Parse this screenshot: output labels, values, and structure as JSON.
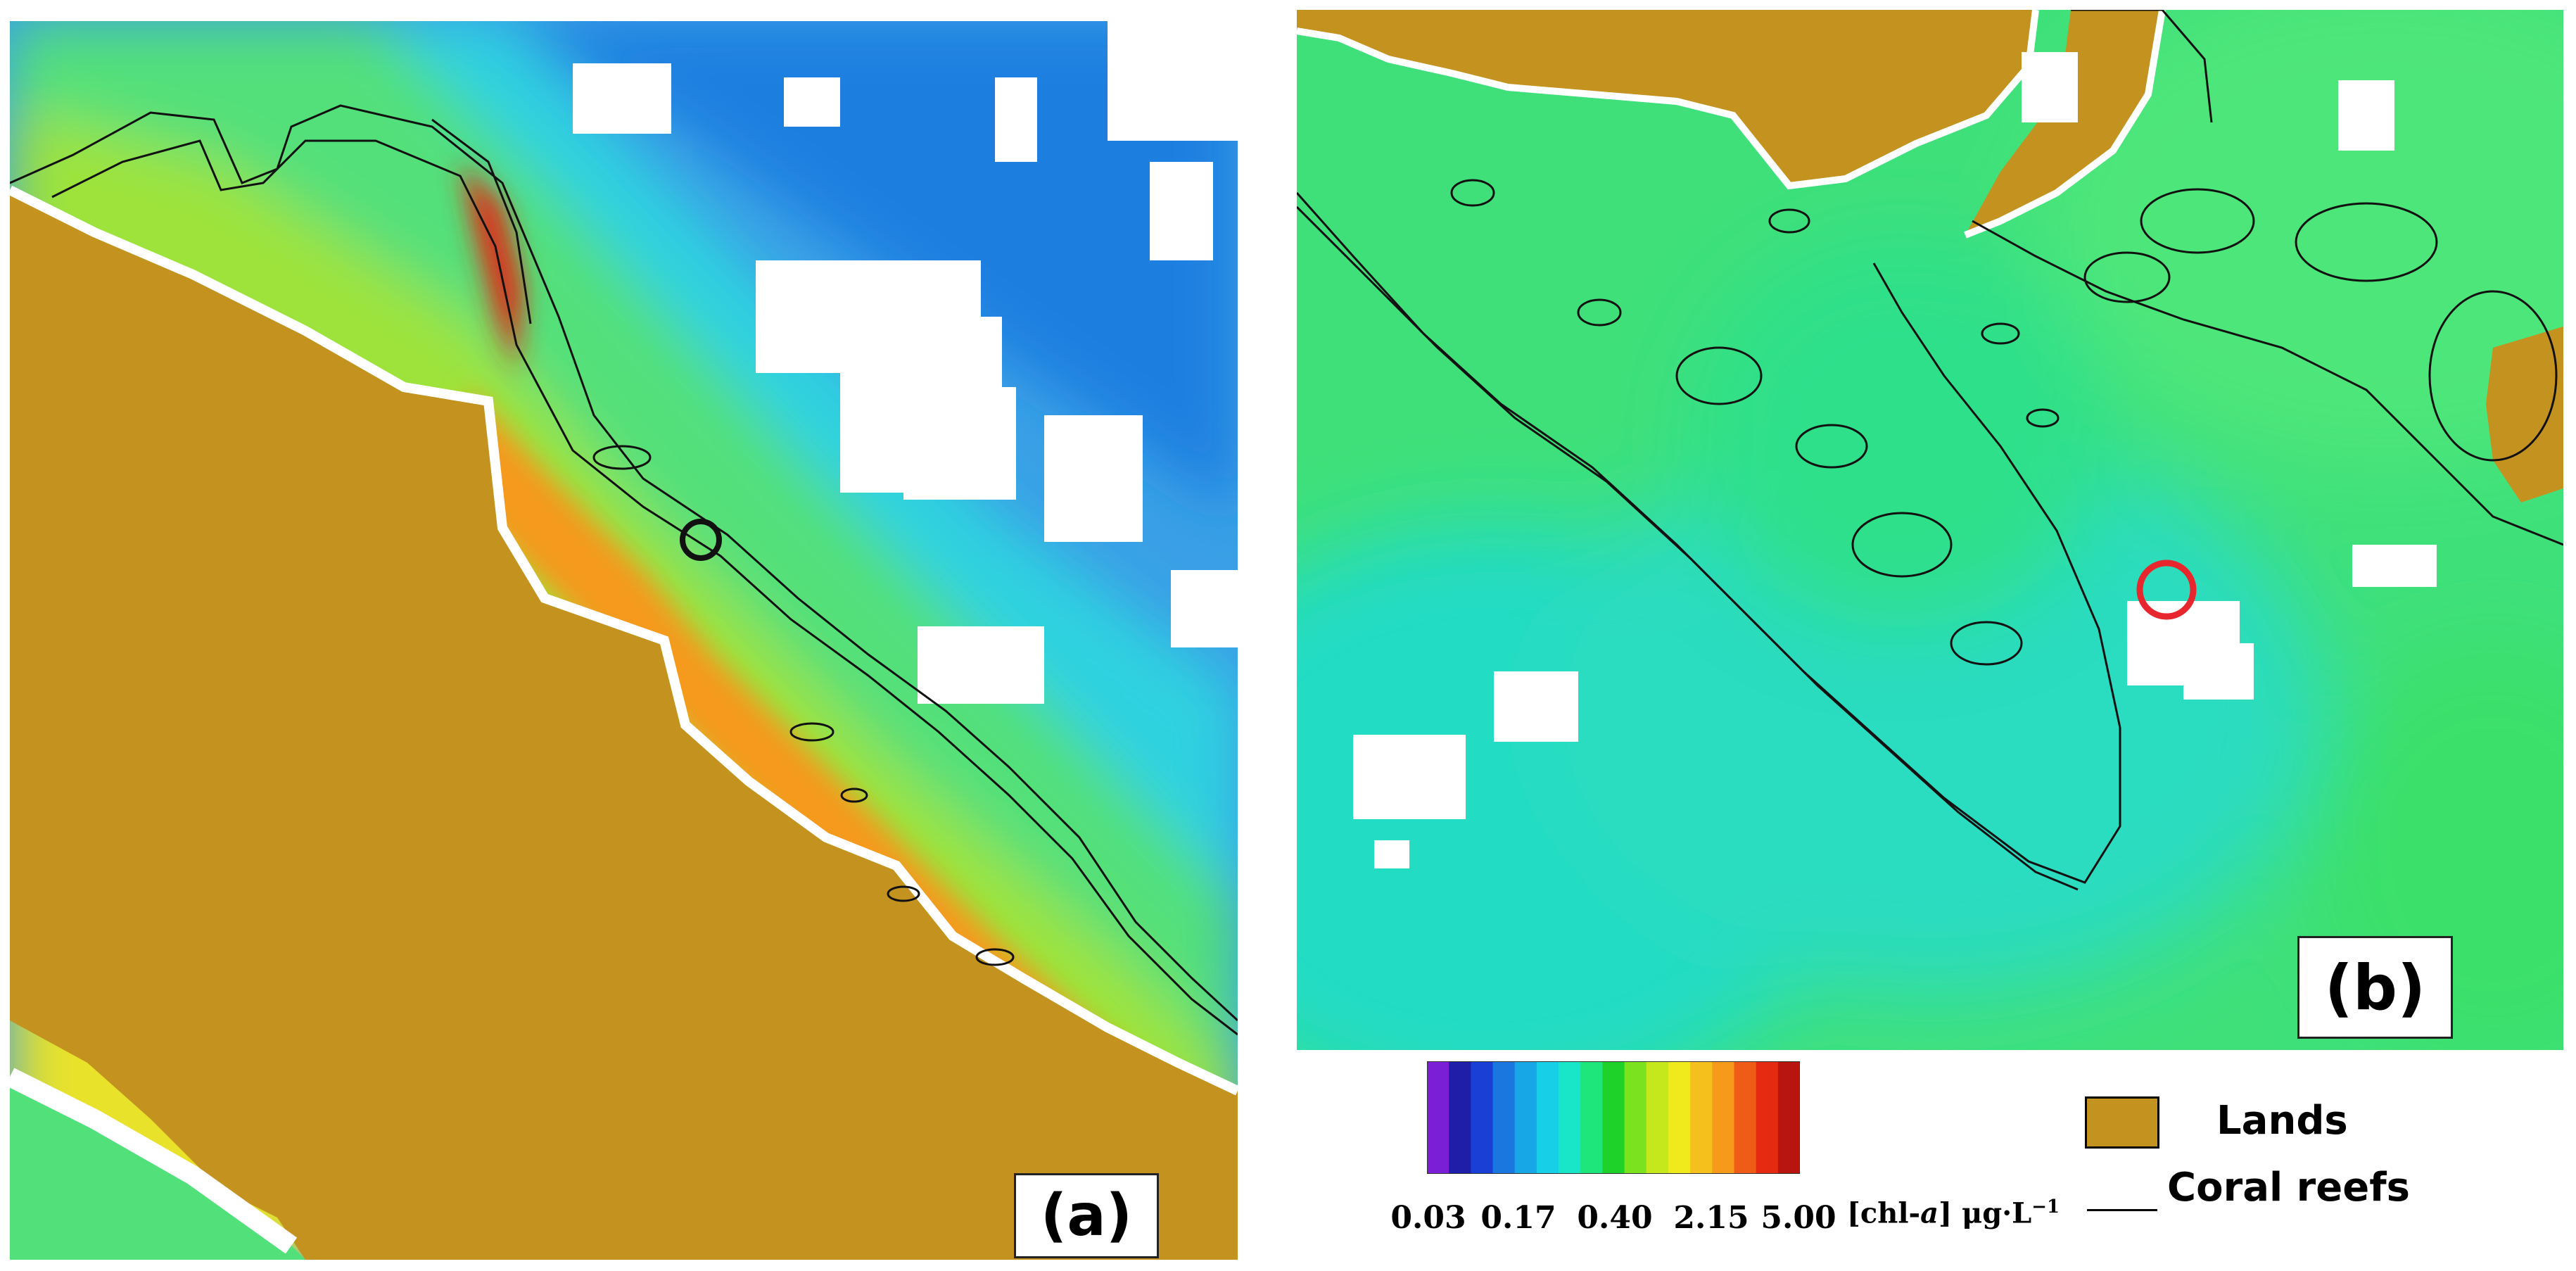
{
  "panels": {
    "a": {
      "label": "(a)"
    },
    "b": {
      "label": "(b)"
    }
  },
  "colorbar": {
    "colors": [
      "#7b1fd6",
      "#1e1ea8",
      "#1a3fd4",
      "#1b77e0",
      "#17a6e6",
      "#17d0e8",
      "#19e6c8",
      "#1ee67a",
      "#1fd22a",
      "#7ae31d",
      "#c5e81c",
      "#f0ea1c",
      "#f5c01b",
      "#f59a1a",
      "#ef5c17",
      "#e62a12",
      "#b81410"
    ],
    "ticks": [
      "0.03",
      "0.17",
      "0.40",
      "2.15",
      "5.00"
    ],
    "unit_name": "[chl-",
    "unit_var": "a",
    "unit_rest": "] μg·L",
    "unit_exp": "−1"
  },
  "legend": {
    "lands_label": "Lands",
    "reefs_label": "Coral reefs",
    "land_color": "#c4921f"
  },
  "colors": {
    "land": "#c4921f",
    "no_data": "#ffffff",
    "reef_outline": "#111111",
    "marker_a": "#111111",
    "marker_b": "#e8262e"
  }
}
